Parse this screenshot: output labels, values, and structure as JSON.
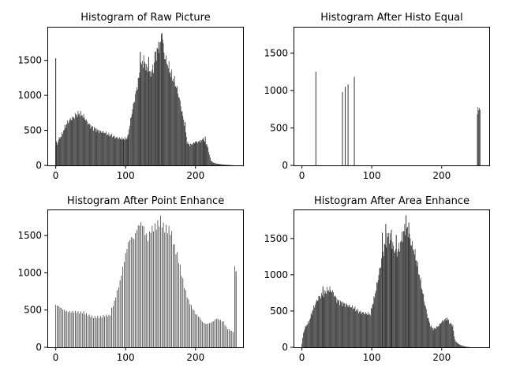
{
  "figure": {
    "background": "#ffffff",
    "bar_color": "#333333"
  },
  "chart_data": [
    {
      "type": "bar",
      "title": "Histogram of Raw Picture",
      "xlabel": "",
      "ylabel": "",
      "xlim": [
        -12,
        268
      ],
      "ylim": [
        0,
        1980
      ],
      "xticks": [
        0,
        100,
        200
      ],
      "yticks": [
        0,
        500,
        1000,
        1500
      ],
      "grid": false,
      "profile": [
        [
          0,
          1530
        ],
        [
          1,
          330
        ],
        [
          2,
          300
        ],
        [
          4,
          370
        ],
        [
          8,
          420
        ],
        [
          12,
          520
        ],
        [
          16,
          600
        ],
        [
          20,
          650
        ],
        [
          25,
          680
        ],
        [
          30,
          730
        ],
        [
          35,
          740
        ],
        [
          40,
          700
        ],
        [
          45,
          620
        ],
        [
          50,
          560
        ],
        [
          55,
          530
        ],
        [
          60,
          500
        ],
        [
          65,
          480
        ],
        [
          70,
          470
        ],
        [
          75,
          440
        ],
        [
          80,
          430
        ],
        [
          85,
          400
        ],
        [
          90,
          390
        ],
        [
          95,
          380
        ],
        [
          100,
          380
        ],
        [
          103,
          400
        ],
        [
          105,
          520
        ],
        [
          108,
          700
        ],
        [
          112,
          900
        ],
        [
          116,
          1100
        ],
        [
          120,
          1300
        ],
        [
          123,
          1450
        ],
        [
          126,
          1500
        ],
        [
          130,
          1400
        ],
        [
          135,
          1300
        ],
        [
          140,
          1400
        ],
        [
          145,
          1650
        ],
        [
          150,
          1750
        ],
        [
          152,
          1890
        ],
        [
          155,
          1600
        ],
        [
          158,
          1500
        ],
        [
          162,
          1400
        ],
        [
          165,
          1300
        ],
        [
          170,
          1200
        ],
        [
          175,
          1050
        ],
        [
          180,
          800
        ],
        [
          185,
          550
        ],
        [
          188,
          330
        ],
        [
          192,
          290
        ],
        [
          196,
          310
        ],
        [
          200,
          330
        ],
        [
          205,
          340
        ],
        [
          210,
          360
        ],
        [
          215,
          320
        ],
        [
          218,
          250
        ],
        [
          220,
          150
        ],
        [
          222,
          70
        ],
        [
          225,
          40
        ],
        [
          230,
          25
        ],
        [
          240,
          12
        ],
        [
          250,
          5
        ],
        [
          255,
          1
        ]
      ],
      "spikes": [
        [
          0,
          1530
        ],
        [
          1,
          330
        ],
        [
          97,
          380
        ],
        [
          103,
          400
        ],
        [
          121,
          1620
        ],
        [
          133,
          1550
        ],
        [
          142,
          1620
        ],
        [
          147,
          1660
        ],
        [
          152,
          1890
        ],
        [
          185,
          620
        ],
        [
          200,
          340
        ],
        [
          211,
          390
        ],
        [
          214,
          410
        ]
      ],
      "bar_step": 1,
      "bar_gaps": []
    },
    {
      "type": "bar",
      "title": "Histogram After Histo Equal",
      "xlabel": "",
      "ylabel": "",
      "xlim": [
        -12,
        268
      ],
      "ylim": [
        0,
        1850
      ],
      "xticks": [
        0,
        100,
        200
      ],
      "yticks": [
        0,
        500,
        1000,
        1500
      ],
      "grid": false,
      "profile": [
        [
          0,
          400
        ],
        [
          4,
          430
        ],
        [
          6,
          800
        ],
        [
          8,
          950
        ],
        [
          10,
          1060
        ],
        [
          12,
          600
        ],
        [
          16,
          650
        ],
        [
          20,
          680
        ],
        [
          24,
          700
        ],
        [
          28,
          730
        ],
        [
          32,
          720
        ],
        [
          36,
          700
        ],
        [
          40,
          660
        ],
        [
          45,
          600
        ],
        [
          50,
          580
        ],
        [
          55,
          560
        ],
        [
          60,
          540
        ],
        [
          65,
          510
        ],
        [
          70,
          490
        ],
        [
          75,
          470
        ],
        [
          80,
          430
        ],
        [
          85,
          400
        ],
        [
          90,
          450
        ],
        [
          92,
          500
        ],
        [
          95,
          560
        ],
        [
          100,
          700
        ],
        [
          105,
          900
        ],
        [
          110,
          1150
        ],
        [
          115,
          1400
        ],
        [
          120,
          1500
        ],
        [
          125,
          1600
        ],
        [
          130,
          1500
        ],
        [
          135,
          1400
        ],
        [
          140,
          1550
        ],
        [
          145,
          1600
        ],
        [
          150,
          1650
        ],
        [
          155,
          1500
        ],
        [
          160,
          1450
        ],
        [
          165,
          1500
        ],
        [
          170,
          1650
        ],
        [
          175,
          1700
        ],
        [
          180,
          1750
        ],
        [
          185,
          1600
        ],
        [
          190,
          1500
        ],
        [
          195,
          1400
        ],
        [
          200,
          1350
        ],
        [
          205,
          1250
        ],
        [
          210,
          1150
        ],
        [
          215,
          1000
        ],
        [
          220,
          850
        ],
        [
          225,
          700
        ],
        [
          230,
          600
        ],
        [
          235,
          550
        ],
        [
          240,
          600
        ],
        [
          245,
          650
        ],
        [
          250,
          700
        ],
        [
          255,
          780
        ]
      ],
      "spikes": [
        [
          20,
          1250
        ],
        [
          58,
          980
        ],
        [
          62,
          1050
        ],
        [
          66,
          1080
        ],
        [
          75,
          1180
        ]
      ],
      "bar_step": 1,
      "bar_gaps": [
        [
          0,
          40
        ],
        [
          4,
          250
        ]
      ]
    },
    {
      "type": "bar",
      "title": "Histogram After Point Enhance",
      "xlabel": "",
      "ylabel": "",
      "xlim": [
        -12,
        268
      ],
      "ylim": [
        0,
        1850
      ],
      "xticks": [
        0,
        100,
        200
      ],
      "yticks": [
        0,
        500,
        1000,
        1500
      ],
      "grid": false,
      "profile": [
        [
          0,
          570
        ],
        [
          5,
          560
        ],
        [
          10,
          530
        ],
        [
          15,
          500
        ],
        [
          20,
          480
        ],
        [
          25,
          470
        ],
        [
          30,
          460
        ],
        [
          35,
          450
        ],
        [
          40,
          460
        ],
        [
          45,
          440
        ],
        [
          50,
          430
        ],
        [
          55,
          420
        ],
        [
          60,
          420
        ],
        [
          65,
          410
        ],
        [
          70,
          420
        ],
        [
          75,
          410
        ],
        [
          78,
          420
        ],
        [
          80,
          500
        ],
        [
          84,
          600
        ],
        [
          88,
          750
        ],
        [
          92,
          900
        ],
        [
          96,
          1100
        ],
        [
          100,
          1300
        ],
        [
          104,
          1450
        ],
        [
          108,
          1500
        ],
        [
          112,
          1450
        ],
        [
          116,
          1550
        ],
        [
          120,
          1600
        ],
        [
          124,
          1600
        ],
        [
          128,
          1500
        ],
        [
          132,
          1450
        ],
        [
          136,
          1600
        ],
        [
          140,
          1650
        ],
        [
          145,
          1700
        ],
        [
          150,
          1750
        ],
        [
          155,
          1600
        ],
        [
          160,
          1550
        ],
        [
          165,
          1500
        ],
        [
          170,
          1300
        ],
        [
          175,
          1200
        ],
        [
          180,
          1000
        ],
        [
          185,
          800
        ],
        [
          190,
          650
        ],
        [
          195,
          550
        ],
        [
          200,
          450
        ],
        [
          205,
          400
        ],
        [
          210,
          330
        ],
        [
          215,
          300
        ],
        [
          220,
          320
        ],
        [
          225,
          350
        ],
        [
          230,
          400
        ],
        [
          235,
          380
        ],
        [
          240,
          350
        ],
        [
          245,
          250
        ],
        [
          250,
          220
        ],
        [
          254,
          200
        ],
        [
          256,
          1020
        ]
      ],
      "spikes": [
        [
          258,
          1020
        ]
      ],
      "bar_step": 2,
      "bar_gaps": []
    },
    {
      "type": "bar",
      "title": "Histogram After Area Enhance",
      "xlabel": "",
      "ylabel": "",
      "xlim": [
        -12,
        268
      ],
      "ylim": [
        0,
        1900
      ],
      "xticks": [
        0,
        100,
        200
      ],
      "yticks": [
        0,
        500,
        1000,
        1500
      ],
      "grid": false,
      "profile": [
        [
          0,
          50
        ],
        [
          2,
          200
        ],
        [
          5,
          280
        ],
        [
          10,
          350
        ],
        [
          15,
          500
        ],
        [
          20,
          620
        ],
        [
          25,
          700
        ],
        [
          30,
          720
        ],
        [
          35,
          780
        ],
        [
          40,
          800
        ],
        [
          45,
          750
        ],
        [
          50,
          650
        ],
        [
          55,
          620
        ],
        [
          60,
          600
        ],
        [
          65,
          580
        ],
        [
          70,
          560
        ],
        [
          75,
          540
        ],
        [
          80,
          500
        ],
        [
          85,
          480
        ],
        [
          90,
          470
        ],
        [
          95,
          460
        ],
        [
          98,
          460
        ],
        [
          100,
          550
        ],
        [
          104,
          700
        ],
        [
          108,
          900
        ],
        [
          112,
          1100
        ],
        [
          116,
          1300
        ],
        [
          120,
          1450
        ],
        [
          124,
          1550
        ],
        [
          128,
          1450
        ],
        [
          132,
          1350
        ],
        [
          136,
          1300
        ],
        [
          140,
          1400
        ],
        [
          144,
          1550
        ],
        [
          148,
          1650
        ],
        [
          152,
          1600
        ],
        [
          156,
          1450
        ],
        [
          160,
          1350
        ],
        [
          164,
          1200
        ],
        [
          168,
          1000
        ],
        [
          172,
          800
        ],
        [
          176,
          600
        ],
        [
          180,
          420
        ],
        [
          184,
          300
        ],
        [
          188,
          250
        ],
        [
          192,
          270
        ],
        [
          196,
          300
        ],
        [
          200,
          350
        ],
        [
          204,
          380
        ],
        [
          208,
          400
        ],
        [
          212,
          330
        ],
        [
          216,
          300
        ],
        [
          218,
          150
        ],
        [
          220,
          80
        ],
        [
          225,
          40
        ],
        [
          230,
          20
        ],
        [
          235,
          8
        ],
        [
          240,
          3
        ]
      ],
      "spikes": [
        [
          30,
          840
        ],
        [
          115,
          1580
        ],
        [
          120,
          1700
        ],
        [
          128,
          1620
        ],
        [
          135,
          1550
        ],
        [
          149,
          1820
        ],
        [
          153,
          1720
        ]
      ],
      "bar_step": 1,
      "bar_gaps": []
    }
  ]
}
